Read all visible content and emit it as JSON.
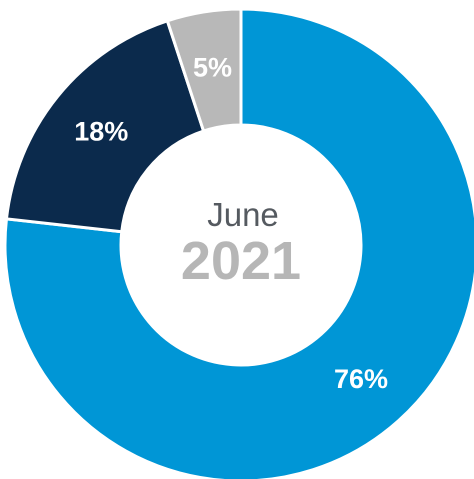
{
  "center": {
    "month": "June",
    "year": "2021"
  },
  "chart_data": {
    "type": "pie",
    "donut": true,
    "slices": [
      {
        "label": "76%",
        "value": 76,
        "color": "#0096d6"
      },
      {
        "label": "18%",
        "value": 18,
        "color": "#0b2a4c"
      },
      {
        "label": "5%",
        "value": 5,
        "color": "#b8b8b8"
      }
    ]
  }
}
